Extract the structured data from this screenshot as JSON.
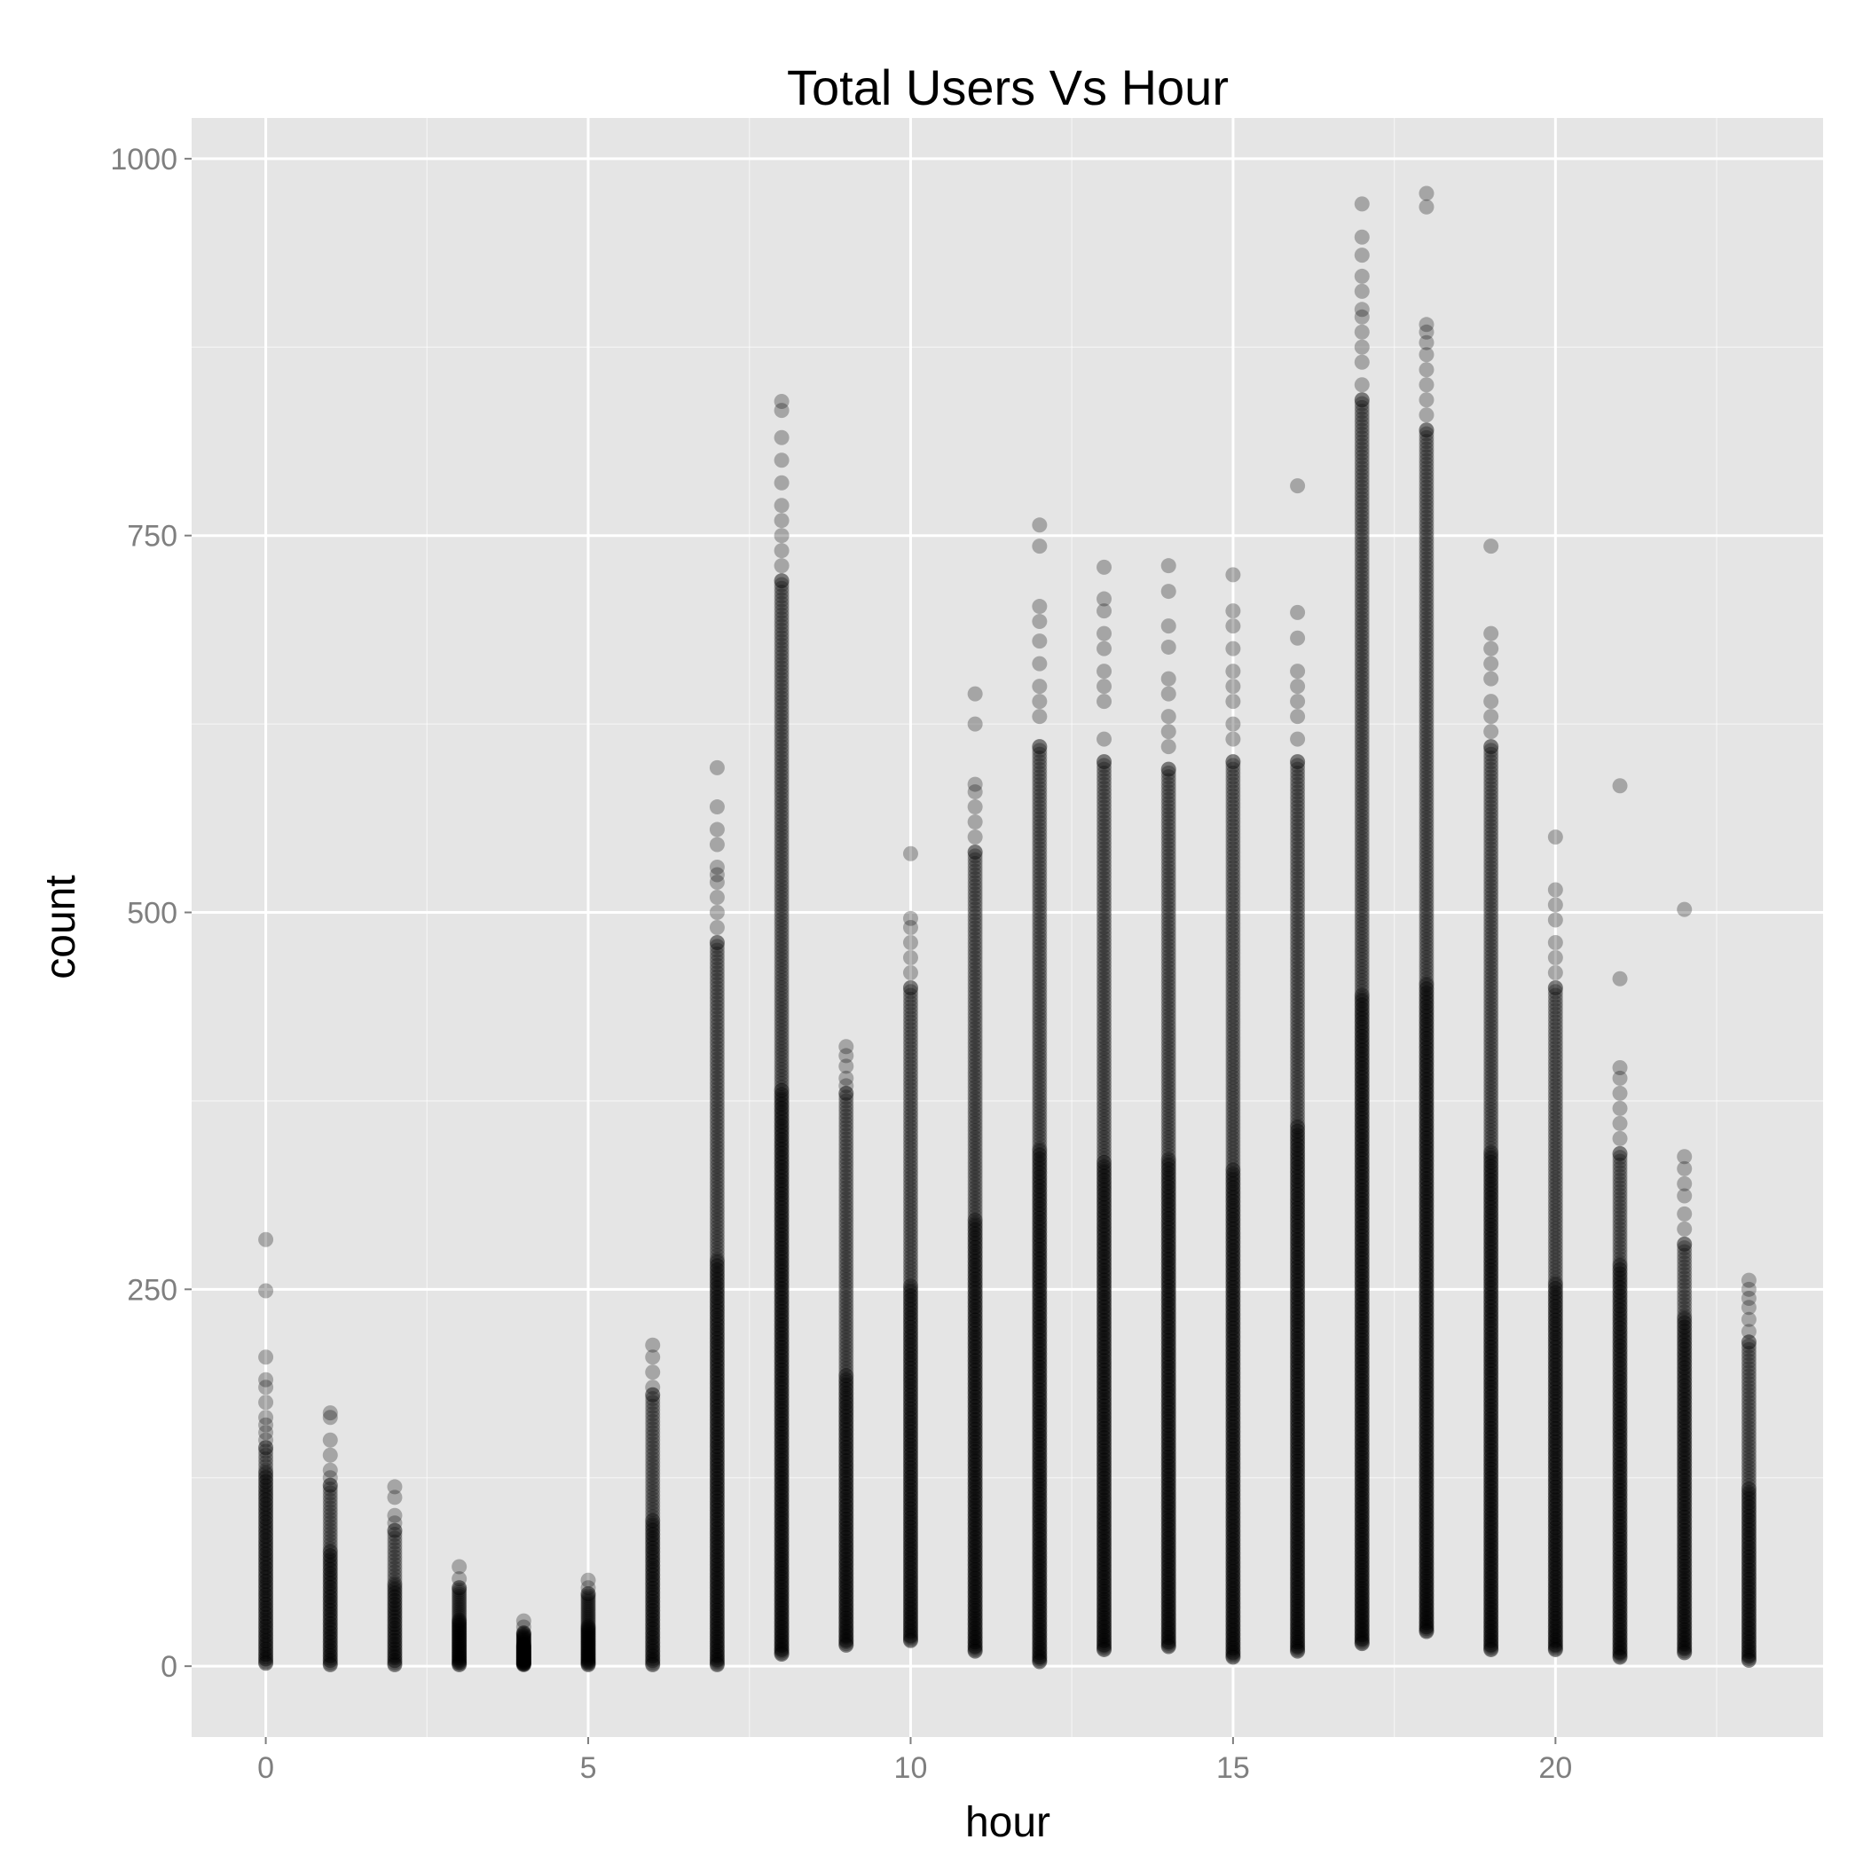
{
  "chart_data": {
    "type": "scatter",
    "title": "Total Users Vs Hour",
    "xlabel": "hour",
    "ylabel": "count",
    "xlim": [
      -1.15,
      24.15
    ],
    "ylim": [
      -47,
      1027
    ],
    "x_ticks": [
      0,
      5,
      10,
      15,
      20
    ],
    "x_tick_labels": [
      "0",
      "5",
      "10",
      "15",
      "20"
    ],
    "y_ticks": [
      0,
      250,
      500,
      750,
      1000
    ],
    "y_tick_labels": [
      "0",
      "250",
      "500",
      "750",
      "1000"
    ],
    "grid": true,
    "panel_background": "#e5e5e5",
    "grid_color": "#ffffff",
    "point_color": "#000000",
    "point_alpha": 0.28,
    "series": [
      {
        "x": 0,
        "min": 2,
        "max": 283,
        "upper_points": [
          283,
          249,
          205,
          190,
          185,
          175,
          165,
          160,
          155,
          150,
          145
        ]
      },
      {
        "x": 1,
        "min": 1,
        "max": 168,
        "upper_points": [
          168,
          165,
          150,
          140,
          130,
          125,
          120
        ]
      },
      {
        "x": 2,
        "min": 1,
        "max": 119,
        "upper_points": [
          119,
          112,
          100,
          95,
          90
        ]
      },
      {
        "x": 3,
        "min": 1,
        "max": 66,
        "upper_points": [
          66,
          58,
          52
        ]
      },
      {
        "x": 4,
        "min": 1,
        "max": 30,
        "upper_points": [
          30,
          26,
          22
        ]
      },
      {
        "x": 5,
        "min": 1,
        "max": 57,
        "upper_points": [
          57,
          52,
          48
        ]
      },
      {
        "x": 6,
        "min": 1,
        "max": 213,
        "upper_points": [
          213,
          205,
          195,
          185,
          180
        ]
      },
      {
        "x": 7,
        "min": 1,
        "max": 596,
        "upper_points": [
          596,
          570,
          555,
          545,
          530,
          525,
          520,
          510,
          500,
          490,
          480
        ]
      },
      {
        "x": 8,
        "min": 8,
        "max": 839,
        "upper_points": [
          839,
          833,
          815,
          800,
          785,
          770,
          760,
          750,
          740,
          730,
          720
        ]
      },
      {
        "x": 9,
        "min": 14,
        "max": 411,
        "upper_points": [
          411,
          405,
          398,
          390,
          385,
          380
        ]
      },
      {
        "x": 10,
        "min": 17,
        "max": 539,
        "upper_points": [
          539,
          496,
          490,
          480,
          470,
          460,
          450
        ]
      },
      {
        "x": 11,
        "min": 10,
        "max": 645,
        "upper_points": [
          645,
          625,
          585,
          580,
          570,
          560,
          550,
          540
        ]
      },
      {
        "x": 12,
        "min": 3,
        "max": 757,
        "upper_points": [
          757,
          743,
          703,
          693,
          680,
          665,
          650,
          640,
          630,
          610
        ]
      },
      {
        "x": 13,
        "min": 11,
        "max": 729,
        "upper_points": [
          729,
          708,
          700,
          685,
          675,
          660,
          650,
          640,
          615,
          600
        ]
      },
      {
        "x": 14,
        "min": 13,
        "max": 730,
        "upper_points": [
          730,
          713,
          690,
          676,
          655,
          645,
          630,
          620,
          610,
          595
        ]
      },
      {
        "x": 15,
        "min": 6,
        "max": 724,
        "upper_points": [
          724,
          700,
          690,
          675,
          660,
          650,
          640,
          625,
          615,
          600
        ]
      },
      {
        "x": 16,
        "min": 10,
        "max": 783,
        "upper_points": [
          783,
          699,
          682,
          660,
          650,
          640,
          630,
          615,
          600
        ]
      },
      {
        "x": 17,
        "min": 15,
        "max": 970,
        "upper_points": [
          970,
          948,
          936,
          922,
          912,
          900,
          895,
          885,
          875,
          865,
          850,
          840
        ]
      },
      {
        "x": 18,
        "min": 23,
        "max": 977,
        "upper_points": [
          977,
          968,
          890,
          885,
          878,
          870,
          860,
          850,
          840,
          830,
          820
        ]
      },
      {
        "x": 19,
        "min": 11,
        "max": 743,
        "upper_points": [
          743,
          685,
          675,
          665,
          655,
          640,
          630,
          620,
          610
        ]
      },
      {
        "x": 20,
        "min": 11,
        "max": 550,
        "upper_points": [
          550,
          515,
          505,
          495,
          480,
          470,
          460,
          450
        ]
      },
      {
        "x": 21,
        "min": 6,
        "max": 584,
        "upper_points": [
          584,
          456,
          397,
          390,
          380,
          370,
          360,
          350,
          340
        ]
      },
      {
        "x": 22,
        "min": 9,
        "max": 502,
        "upper_points": [
          502,
          338,
          330,
          320,
          312,
          300,
          290,
          280
        ]
      },
      {
        "x": 23,
        "min": 4,
        "max": 256,
        "upper_points": [
          256,
          250,
          244,
          238,
          230,
          222,
          215
        ]
      }
    ]
  }
}
